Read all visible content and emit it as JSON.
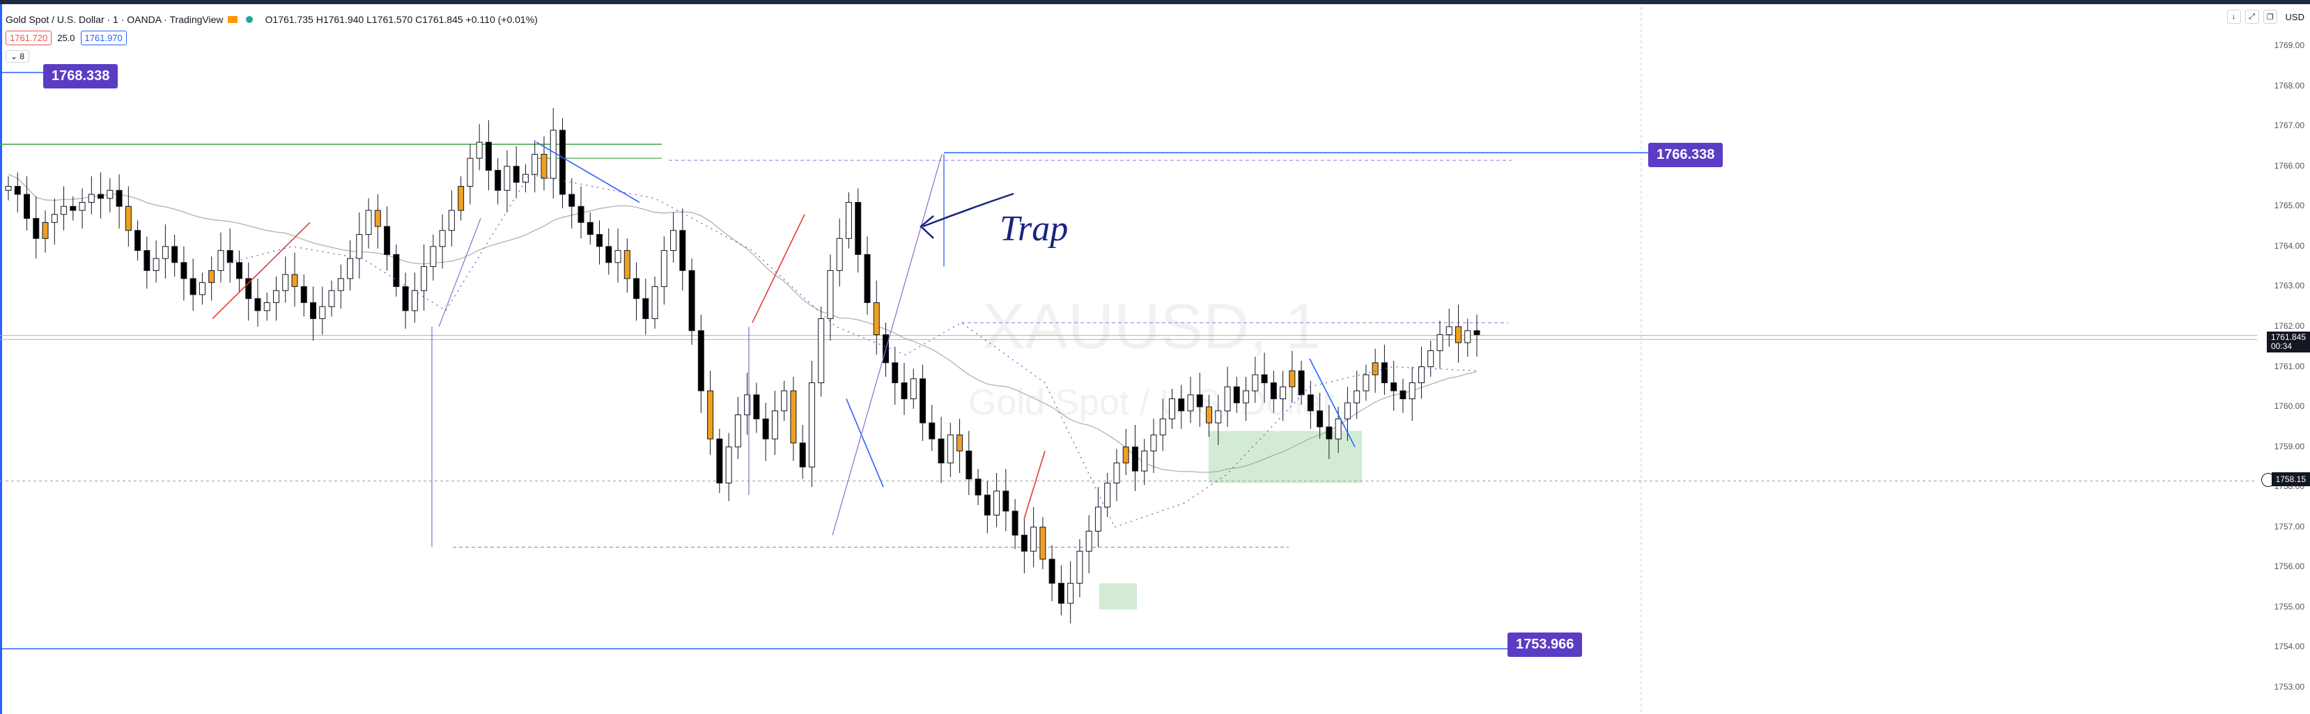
{
  "header": {
    "symbol_title": "Gold Spot / U.S. Dollar · 1 · OANDA · TradingView",
    "ohlc": "O1761.735 H1761.940 L1761.570 C1761.845 +0.110 (+0.01%)",
    "sell_price": "1761.720",
    "spread": "25.0",
    "buy_price": "1761.970",
    "collapse_label": "8",
    "currency": "USD"
  },
  "toolbar": {
    "down_arrow_icon": "arrow-down-icon",
    "fullscreen_icon": "fullscreen-icon",
    "restore_icon": "restore-icon"
  },
  "annotations": {
    "trap_text": "Trap",
    "badge_top": "1768.338",
    "badge_mid": "1766.338",
    "badge_low": "1753.966"
  },
  "price_axis": {
    "current_price": "1761.845",
    "countdown": "00:34",
    "crosshair_price": "1758.15"
  },
  "colors": {
    "bull": "#ffffff",
    "bear": "#000000",
    "orange_candle": "#f0a020",
    "badge": "#5b3cc4",
    "blue_line": "#2962ff",
    "green_line": "#43a047",
    "purple_tool": "#b39ddb"
  },
  "chart_data": {
    "type": "candlestick",
    "symbol": "XAUUSD",
    "timeframe": "1",
    "y_ticks": [
      1753,
      1754,
      1755,
      1756,
      1757,
      1758,
      1759,
      1760,
      1761,
      1762,
      1763,
      1764,
      1765,
      1766,
      1767,
      1768,
      1769
    ],
    "y_tick_labels": [
      "1753.00",
      "1754.00",
      "1755.00",
      "1756.00",
      "1757.00",
      "1758.00",
      "1759.00",
      "1760.00",
      "1761.00",
      "1762.00",
      "1763.00",
      "1764.00",
      "1765.00",
      "1766.00",
      "1767.00",
      "1768.00",
      "1769.00"
    ],
    "ylim": [
      1752.6,
      1769.8
    ],
    "grid": false,
    "watermark": "XAUUSD, 1",
    "watermark_sub": "Gold Spot / U.S. Dollar",
    "close_series": [
      1765.5,
      1765.3,
      1764.7,
      1764.2,
      1764.6,
      1764.8,
      1765.0,
      1764.9,
      1765.1,
      1765.3,
      1765.2,
      1765.4,
      1765.0,
      1764.4,
      1763.9,
      1763.4,
      1763.7,
      1764.0,
      1763.6,
      1763.2,
      1762.8,
      1763.1,
      1763.4,
      1763.9,
      1763.6,
      1763.2,
      1762.7,
      1762.4,
      1762.6,
      1762.9,
      1763.3,
      1763.0,
      1762.6,
      1762.2,
      1762.5,
      1762.9,
      1763.2,
      1763.7,
      1764.3,
      1764.9,
      1764.5,
      1763.8,
      1763.0,
      1762.4,
      1762.9,
      1763.5,
      1764.0,
      1764.4,
      1764.9,
      1765.5,
      1766.2,
      1766.6,
      1765.9,
      1765.4,
      1766.0,
      1765.6,
      1765.8,
      1766.3,
      1765.7,
      1766.9,
      1765.3,
      1765.0,
      1764.6,
      1764.3,
      1764.0,
      1763.6,
      1763.9,
      1763.2,
      1762.7,
      1762.2,
      1763.0,
      1763.9,
      1764.4,
      1763.4,
      1761.9,
      1760.4,
      1759.2,
      1758.1,
      1759.0,
      1759.8,
      1760.3,
      1759.7,
      1759.2,
      1759.9,
      1760.4,
      1759.1,
      1758.5,
      1760.6,
      1762.2,
      1763.4,
      1764.2,
      1765.1,
      1763.8,
      1762.6,
      1761.8,
      1761.1,
      1760.6,
      1760.2,
      1760.7,
      1759.6,
      1759.2,
      1758.6,
      1759.3,
      1758.9,
      1758.2,
      1757.8,
      1757.3,
      1757.9,
      1757.4,
      1756.8,
      1756.4,
      1757.0,
      1756.2,
      1755.6,
      1755.1,
      1755.6,
      1756.4,
      1756.9,
      1757.5,
      1758.1,
      1758.6,
      1759.0,
      1758.4,
      1758.9,
      1759.3,
      1759.7,
      1760.2,
      1759.9,
      1760.3,
      1760.0,
      1759.6,
      1759.9,
      1760.5,
      1760.1,
      1760.4,
      1760.8,
      1760.6,
      1760.2,
      1760.5,
      1760.9,
      1760.3,
      1759.9,
      1759.5,
      1759.2,
      1759.7,
      1760.1,
      1760.4,
      1760.8,
      1761.1,
      1760.6,
      1760.4,
      1760.2,
      1760.6,
      1761.0,
      1761.4,
      1761.8,
      1762.0,
      1761.6,
      1761.9,
      1761.8
    ],
    "horizontal_levels": [
      {
        "name": "blue-level-top",
        "value": 1768.338,
        "color": "#2962ff"
      },
      {
        "name": "blue-level-mid",
        "value": 1766.338,
        "color": "#2962ff"
      },
      {
        "name": "blue-level-low",
        "value": 1753.966,
        "color": "#2962ff"
      },
      {
        "name": "green-level",
        "value": 1766.55,
        "color": "#43a047"
      },
      {
        "name": "crosshair-level",
        "value": 1758.15,
        "color": "#9e9e9e"
      }
    ]
  }
}
